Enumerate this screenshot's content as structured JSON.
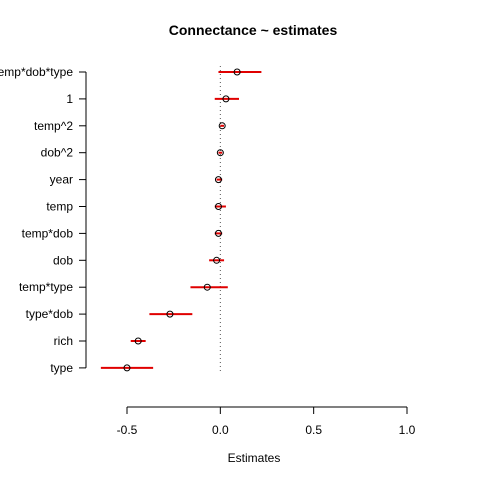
{
  "chart_data": {
    "type": "scatter",
    "title": "Connectance ~ estimates",
    "xlabel": "Estimates",
    "ylabel": "",
    "xlim": [
      -0.5,
      1.0
    ],
    "x_ticks": [
      -0.5,
      0.0,
      0.5,
      1.0
    ],
    "x_tick_labels": [
      "-0.5",
      "0.0",
      "0.5",
      "1.0"
    ],
    "reference_line": {
      "x": 0.0,
      "style": "dotted"
    },
    "error_bar_color": "#e00000",
    "terms": [
      {
        "label": "temp*dob*type",
        "estimate": 0.09,
        "lower": -0.01,
        "upper": 0.22
      },
      {
        "label": "1",
        "estimate": 0.03,
        "lower": -0.03,
        "upper": 0.1
      },
      {
        "label": "temp^2",
        "estimate": 0.01,
        "lower": 0.0,
        "upper": 0.02
      },
      {
        "label": "dob^2",
        "estimate": 0.0,
        "lower": -0.01,
        "upper": 0.01
      },
      {
        "label": "year",
        "estimate": -0.01,
        "lower": -0.02,
        "upper": 0.01
      },
      {
        "label": "temp",
        "estimate": -0.01,
        "lower": -0.03,
        "upper": 0.03
      },
      {
        "label": "temp*dob",
        "estimate": -0.01,
        "lower": -0.03,
        "upper": 0.01
      },
      {
        "label": "dob",
        "estimate": -0.02,
        "lower": -0.06,
        "upper": 0.02
      },
      {
        "label": "temp*type",
        "estimate": -0.07,
        "lower": -0.16,
        "upper": 0.04
      },
      {
        "label": "type*dob",
        "estimate": -0.27,
        "lower": -0.38,
        "upper": -0.15
      },
      {
        "label": "rich",
        "estimate": -0.44,
        "lower": -0.48,
        "upper": -0.4
      },
      {
        "label": "type",
        "estimate": -0.5,
        "lower": -0.64,
        "upper": -0.36
      }
    ]
  }
}
